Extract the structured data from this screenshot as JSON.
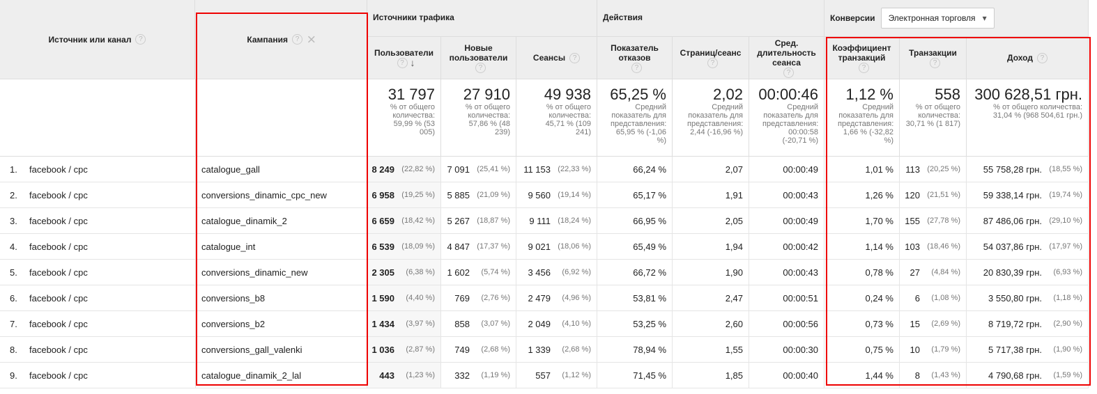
{
  "help": "?",
  "groups": [
    "Источники трафика",
    "Действия",
    "Конверсии"
  ],
  "dropdown": "Электронная торговля",
  "columns": [
    "Источник или канал",
    "Кампания",
    "Пользователи",
    "Новые пользователи",
    "Сеансы",
    "Показатель отказов",
    "Страниц/сеанс",
    "Сред. длительность сеанса",
    "Коэффициент транзакций",
    "Транзакции",
    "Доход"
  ],
  "totals": [
    {
      "value": "31 797",
      "note": "% от общего количества: 59,99 % (53 005)"
    },
    {
      "value": "27 910",
      "note": "% от общего количества: 57,86 % (48 239)"
    },
    {
      "value": "49 938",
      "note": "% от общего количества: 45,71 % (109 241)"
    },
    {
      "value": "65,25 %",
      "note": "Средний показатель для представления: 65,95 % (-1,06 %)"
    },
    {
      "value": "2,02",
      "note": "Средний показатель для представления: 2,44 (-16,96 %)"
    },
    {
      "value": "00:00:46",
      "note": "Средний показатель для представления: 00:00:58 (-20,71 %)"
    },
    {
      "value": "1,12 %",
      "note": "Средний показатель для представления: 1,66 % (-32,82 %)"
    },
    {
      "value": "558",
      "note": "% от общего количества: 30,71 % (1 817)"
    },
    {
      "value": "300 628,51 грн.",
      "note": "% от общего количества: 31,04 % (968 504,61 грн.)"
    }
  ],
  "rows": [
    {
      "index": "1.",
      "source": "facebook / cpc",
      "campaign": "catalogue_gall",
      "cells": [
        [
          "8 249",
          "(22,82 %)"
        ],
        [
          "7 091",
          "(25,41 %)"
        ],
        [
          "11 153",
          "(22,33 %)"
        ],
        [
          "66,24 %"
        ],
        [
          "2,07"
        ],
        [
          "00:00:49"
        ],
        [
          "1,01 %"
        ],
        [
          "113",
          "(20,25 %)"
        ],
        [
          "55 758,28 грн.",
          "(18,55 %)"
        ]
      ]
    },
    {
      "index": "2.",
      "source": "facebook / cpc",
      "campaign": "conversions_dinamic_cpc_new",
      "cells": [
        [
          "6 958",
          "(19,25 %)"
        ],
        [
          "5 885",
          "(21,09 %)"
        ],
        [
          "9 560",
          "(19,14 %)"
        ],
        [
          "65,17 %"
        ],
        [
          "1,91"
        ],
        [
          "00:00:43"
        ],
        [
          "1,26 %"
        ],
        [
          "120",
          "(21,51 %)"
        ],
        [
          "59 338,14 грн.",
          "(19,74 %)"
        ]
      ]
    },
    {
      "index": "3.",
      "source": "facebook / cpc",
      "campaign": "catalogue_dinamik_2",
      "cells": [
        [
          "6 659",
          "(18,42 %)"
        ],
        [
          "5 267",
          "(18,87 %)"
        ],
        [
          "9 111",
          "(18,24 %)"
        ],
        [
          "66,95 %"
        ],
        [
          "2,05"
        ],
        [
          "00:00:49"
        ],
        [
          "1,70 %"
        ],
        [
          "155",
          "(27,78 %)"
        ],
        [
          "87 486,06 грн.",
          "(29,10 %)"
        ]
      ]
    },
    {
      "index": "4.",
      "source": "facebook / cpc",
      "campaign": "catalogue_int",
      "cells": [
        [
          "6 539",
          "(18,09 %)"
        ],
        [
          "4 847",
          "(17,37 %)"
        ],
        [
          "9 021",
          "(18,06 %)"
        ],
        [
          "65,49 %"
        ],
        [
          "1,94"
        ],
        [
          "00:00:42"
        ],
        [
          "1,14 %"
        ],
        [
          "103",
          "(18,46 %)"
        ],
        [
          "54 037,86 грн.",
          "(17,97 %)"
        ]
      ]
    },
    {
      "index": "5.",
      "source": "facebook / cpc",
      "campaign": "conversions_dinamic_new",
      "cells": [
        [
          "2 305",
          "(6,38 %)"
        ],
        [
          "1 602",
          "(5,74 %)"
        ],
        [
          "3 456",
          "(6,92 %)"
        ],
        [
          "66,72 %"
        ],
        [
          "1,90"
        ],
        [
          "00:00:43"
        ],
        [
          "0,78 %"
        ],
        [
          "27",
          "(4,84 %)"
        ],
        [
          "20 830,39 грн.",
          "(6,93 %)"
        ]
      ]
    },
    {
      "index": "6.",
      "source": "facebook / cpc",
      "campaign": "conversions_b8",
      "cells": [
        [
          "1 590",
          "(4,40 %)"
        ],
        [
          "769",
          "(2,76 %)"
        ],
        [
          "2 479",
          "(4,96 %)"
        ],
        [
          "53,81 %"
        ],
        [
          "2,47"
        ],
        [
          "00:00:51"
        ],
        [
          "0,24 %"
        ],
        [
          "6",
          "(1,08 %)"
        ],
        [
          "3 550,80 грн.",
          "(1,18 %)"
        ]
      ]
    },
    {
      "index": "7.",
      "source": "facebook / cpc",
      "campaign": "conversions_b2",
      "cells": [
        [
          "1 434",
          "(3,97 %)"
        ],
        [
          "858",
          "(3,07 %)"
        ],
        [
          "2 049",
          "(4,10 %)"
        ],
        [
          "53,25 %"
        ],
        [
          "2,60"
        ],
        [
          "00:00:56"
        ],
        [
          "0,73 %"
        ],
        [
          "15",
          "(2,69 %)"
        ],
        [
          "8 719,72 грн.",
          "(2,90 %)"
        ]
      ]
    },
    {
      "index": "8.",
      "source": "facebook / cpc",
      "campaign": "conversions_gall_valenki",
      "cells": [
        [
          "1 036",
          "(2,87 %)"
        ],
        [
          "749",
          "(2,68 %)"
        ],
        [
          "1 339",
          "(2,68 %)"
        ],
        [
          "78,94 %"
        ],
        [
          "1,55"
        ],
        [
          "00:00:30"
        ],
        [
          "0,75 %"
        ],
        [
          "10",
          "(1,79 %)"
        ],
        [
          "5 717,38 грн.",
          "(1,90 %)"
        ]
      ]
    },
    {
      "index": "9.",
      "source": "facebook / cpc",
      "campaign": "catalogue_dinamik_2_lal",
      "cells": [
        [
          "443",
          "(1,23 %)"
        ],
        [
          "332",
          "(1,19 %)"
        ],
        [
          "557",
          "(1,12 %)"
        ],
        [
          "71,45 %"
        ],
        [
          "1,85"
        ],
        [
          "00:00:40"
        ],
        [
          "1,44 %"
        ],
        [
          "8",
          "(1,43 %)"
        ],
        [
          "4 790,68 грн.",
          "(1,59 %)"
        ]
      ]
    }
  ]
}
